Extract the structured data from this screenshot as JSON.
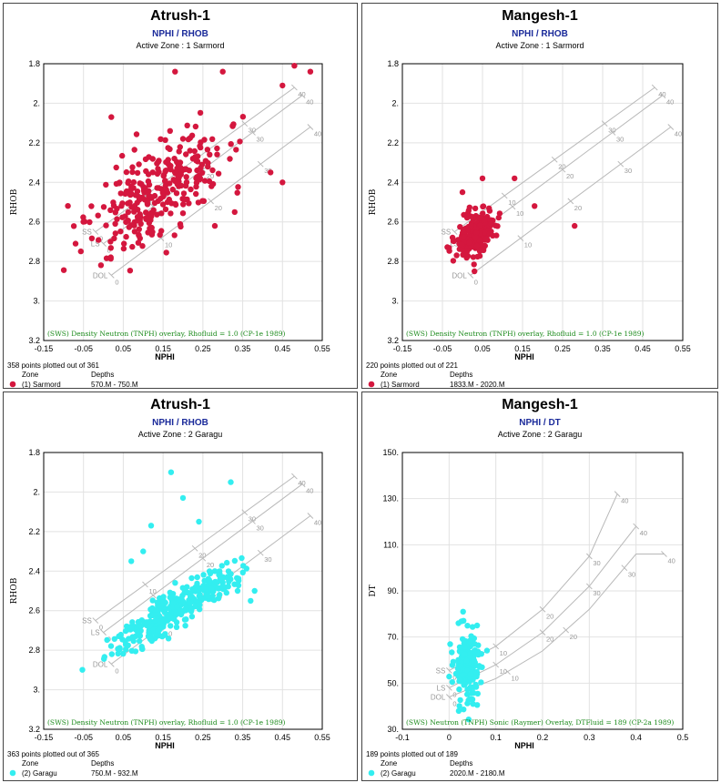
{
  "chart_data": [
    {
      "type": "scatter",
      "title": "Atrush-1",
      "subtitle": "NPHI / RHOB",
      "zone_label": "Active Zone : 1  Sarmord",
      "xlabel": "NPHI",
      "ylabel": "RHOB",
      "xlim": [
        -0.15,
        0.55
      ],
      "ylim": [
        3.2,
        1.8
      ],
      "y_inverted": true,
      "xticks": [
        "-0.15",
        "-0.05",
        "0.05",
        "0.15",
        "0.25",
        "0.35",
        "0.45",
        "0.55"
      ],
      "xtick_values": [
        -0.15,
        -0.05,
        0.05,
        0.15,
        0.25,
        0.35,
        0.45,
        0.55
      ],
      "yticks": [
        "1.8",
        "2.",
        "2.2",
        "2.4",
        "2.6",
        "2.8",
        "3.",
        "3.2"
      ],
      "ytick_values": [
        1.8,
        2.0,
        2.2,
        2.4,
        2.6,
        2.8,
        3.0,
        3.2
      ],
      "overlay_text": "(SWS) Density Neutron (TNPH) overlay, Rhofluid = 1.0 (CP-1e 1989)",
      "overlay_kind": "density",
      "lithology_labels": [
        "SS",
        "LS",
        "DOL"
      ],
      "porosity_labels": [
        "0",
        "10",
        "20",
        "30",
        "40"
      ],
      "points_plotted": "358 points plotted out of 361",
      "legend_zone_header": "Zone",
      "legend_depth_header": "Depths",
      "legend_zone": "(1) Sarmord",
      "legend_depths": "570.M - 750.M",
      "series_color": "#d4173e",
      "cluster": {
        "center": [
          0.14,
          2.45
        ],
        "spread": [
          0.085,
          0.12
        ],
        "count": 300,
        "seed": 11
      },
      "extra_points": [
        [
          0.18,
          1.84
        ],
        [
          0.3,
          1.84
        ],
        [
          0.48,
          1.81
        ],
        [
          0.52,
          1.84
        ],
        [
          0.45,
          1.91
        ],
        [
          0.02,
          2.07
        ],
        [
          0.45,
          2.4
        ],
        [
          0.42,
          2.35
        ],
        [
          0.33,
          2.55
        ],
        [
          0.28,
          2.62
        ],
        [
          0.2,
          2.18
        ]
      ]
    },
    {
      "type": "scatter",
      "title": "Mangesh-1",
      "subtitle": "NPHI / RHOB",
      "zone_label": "Active Zone : 1  Sarmord",
      "xlabel": "NPHI",
      "ylabel": "RHOB",
      "xlim": [
        -0.15,
        0.55
      ],
      "ylim": [
        3.2,
        1.8
      ],
      "y_inverted": true,
      "xticks": [
        "-0.15",
        "-0.05",
        "0.05",
        "0.15",
        "0.25",
        "0.35",
        "0.45",
        "0.55"
      ],
      "xtick_values": [
        -0.15,
        -0.05,
        0.05,
        0.15,
        0.25,
        0.35,
        0.45,
        0.55
      ],
      "yticks": [
        "1.8",
        "2.",
        "2.2",
        "2.4",
        "2.6",
        "2.8",
        "3.",
        "3.2"
      ],
      "ytick_values": [
        1.8,
        2.0,
        2.2,
        2.4,
        2.6,
        2.8,
        3.0,
        3.2
      ],
      "overlay_text": "(SWS) Density Neutron (TNPH) overlay, Rhofluid = 1.0 (CP-1e 1989)",
      "overlay_kind": "density",
      "lithology_labels": [
        "SS",
        "LS",
        "DOL"
      ],
      "porosity_labels": [
        "0",
        "10",
        "20",
        "30",
        "40"
      ],
      "points_plotted": "220 points plotted out of 221",
      "legend_zone_header": "Zone",
      "legend_depth_header": "Depths",
      "legend_zone": "(1) Sarmord",
      "legend_depths": "1833.M - 2020.M",
      "series_color": "#d4173e",
      "cluster": {
        "center": [
          0.03,
          2.66
        ],
        "spread": [
          0.025,
          0.05
        ],
        "count": 200,
        "seed": 23
      },
      "extra_points": [
        [
          0.05,
          2.38
        ],
        [
          0.13,
          2.38
        ],
        [
          0.0,
          2.45
        ],
        [
          0.18,
          2.52
        ],
        [
          0.28,
          2.62
        ],
        [
          0.03,
          2.85
        ]
      ]
    },
    {
      "type": "scatter",
      "title": "Atrush-1",
      "subtitle": "NPHI / RHOB",
      "zone_label": "Active Zone : 2  Garagu",
      "xlabel": "NPHI",
      "ylabel": "RHOB",
      "xlim": [
        -0.15,
        0.55
      ],
      "ylim": [
        3.2,
        1.8
      ],
      "y_inverted": true,
      "xticks": [
        "-0.15",
        "-0.05",
        "0.05",
        "0.15",
        "0.25",
        "0.35",
        "0.45",
        "0.55"
      ],
      "xtick_values": [
        -0.15,
        -0.05,
        0.05,
        0.15,
        0.25,
        0.35,
        0.45,
        0.55
      ],
      "yticks": [
        "1.8",
        "2.",
        "2.2",
        "2.4",
        "2.6",
        "2.8",
        "3.",
        "3.2"
      ],
      "ytick_values": [
        1.8,
        2.0,
        2.2,
        2.4,
        2.6,
        2.8,
        3.0,
        3.2
      ],
      "overlay_text": "(SWS) Density Neutron (TNPH) overlay, Rhofluid = 1.0 (CP-1e 1989)",
      "overlay_kind": "density",
      "lithology_labels": [
        "SS",
        "LS",
        "DOL"
      ],
      "porosity_labels": [
        "0",
        "10",
        "20",
        "30",
        "40"
      ],
      "points_plotted": "363 points plotted out of 365",
      "legend_zone_header": "Zone",
      "legend_depth_header": "Depths",
      "legend_zone": "(2) Garagu",
      "legend_depths": "750.M - 932.M",
      "series_color": "#33eef0",
      "cluster": {
        "center": [
          0.18,
          2.6
        ],
        "spread": [
          0.075,
          0.05
        ],
        "count": 320,
        "seed": 37
      },
      "extra_points": [
        [
          0.17,
          1.9
        ],
        [
          0.2,
          2.03
        ],
        [
          0.32,
          1.95
        ],
        [
          0.12,
          2.17
        ],
        [
          0.24,
          2.15
        ],
        [
          0.07,
          2.35
        ],
        [
          0.1,
          2.3
        ],
        [
          0.37,
          2.55
        ],
        [
          0.38,
          2.5
        ],
        [
          0.28,
          2.4
        ]
      ]
    },
    {
      "type": "scatter",
      "title": "Mangesh-1",
      "subtitle": "NPHI / DT",
      "zone_label": "Active Zone : 2  Garagu",
      "xlabel": "NPHI",
      "ylabel": "DT",
      "xlim": [
        -0.1,
        0.5
      ],
      "ylim": [
        30,
        150
      ],
      "y_inverted": false,
      "xticks": [
        "-0.1",
        "0",
        "0.1",
        "0.2",
        "0.3",
        "0.4",
        "0.5"
      ],
      "xtick_values": [
        -0.1,
        0,
        0.1,
        0.2,
        0.3,
        0.4,
        0.5
      ],
      "yticks": [
        "30.",
        "50.",
        "70.",
        "90.",
        "110.",
        "130.",
        "150."
      ],
      "ytick_values": [
        30,
        50,
        70,
        90,
        110,
        130,
        150
      ],
      "overlay_text": "(SWS) Neutron (TNPH) Sonic (Raymer) Overlay, DTFluid = 189 (CP-2a 1989)",
      "overlay_kind": "sonic",
      "lithology_labels": [
        "SS",
        "LS",
        "DOL"
      ],
      "porosity_labels": [
        "0",
        "10",
        "20",
        "30",
        "40"
      ],
      "points_plotted": "189 points plotted out of 189",
      "legend_zone_header": "Zone",
      "legend_depth_header": "Depths",
      "legend_zone": "(2) Garagu",
      "legend_depths": "2020.M - 2180.M",
      "series_color": "#33eef0",
      "cluster": {
        "center": [
          0.04,
          57
        ],
        "spread": [
          0.015,
          8
        ],
        "count": 180,
        "seed": 53
      },
      "extra_points": [
        [
          0.03,
          81
        ],
        [
          0.02,
          76
        ],
        [
          0.06,
          75
        ],
        [
          0.05,
          43
        ]
      ]
    }
  ]
}
